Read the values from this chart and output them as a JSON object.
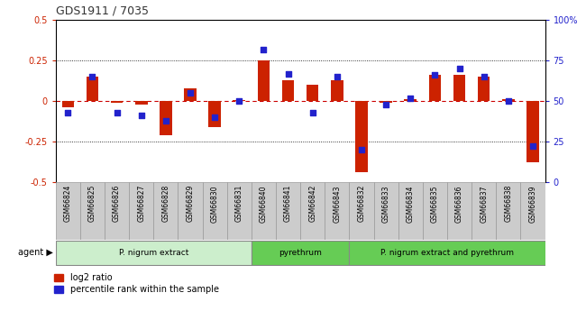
{
  "title": "GDS1911 / 7035",
  "samples": [
    "GSM66824",
    "GSM66825",
    "GSM66826",
    "GSM66827",
    "GSM66828",
    "GSM66829",
    "GSM66830",
    "GSM66831",
    "GSM66840",
    "GSM66841",
    "GSM66842",
    "GSM66843",
    "GSM66832",
    "GSM66833",
    "GSM66834",
    "GSM66835",
    "GSM66836",
    "GSM66837",
    "GSM66838",
    "GSM66839"
  ],
  "log2_ratio": [
    -0.04,
    0.15,
    -0.01,
    -0.02,
    -0.21,
    0.08,
    -0.16,
    0.005,
    0.25,
    0.13,
    0.1,
    0.13,
    -0.44,
    -0.01,
    0.01,
    0.16,
    0.16,
    0.15,
    0.01,
    -0.38
  ],
  "percentile": [
    43,
    65,
    43,
    41,
    38,
    55,
    40,
    50,
    82,
    67,
    43,
    65,
    20,
    48,
    52,
    66,
    70,
    65,
    50,
    22
  ],
  "ylim_left": [
    -0.5,
    0.5
  ],
  "ylim_right": [
    0,
    100
  ],
  "bar_color_red": "#cc2200",
  "dot_color_blue": "#2222cc",
  "zero_line_color": "#cc0000",
  "left_axis_color": "#cc2200",
  "right_axis_color": "#2222cc",
  "label_bg_color": "#cccccc",
  "label_edge_color": "#999999",
  "groups": [
    {
      "label": "P. nigrum extract",
      "start": 0,
      "end": 8,
      "color": "#cceecc"
    },
    {
      "label": "pyrethrum",
      "start": 8,
      "end": 12,
      "color": "#66cc55"
    },
    {
      "label": "P. nigrum extract and pyrethrum",
      "start": 12,
      "end": 20,
      "color": "#66cc55"
    }
  ]
}
